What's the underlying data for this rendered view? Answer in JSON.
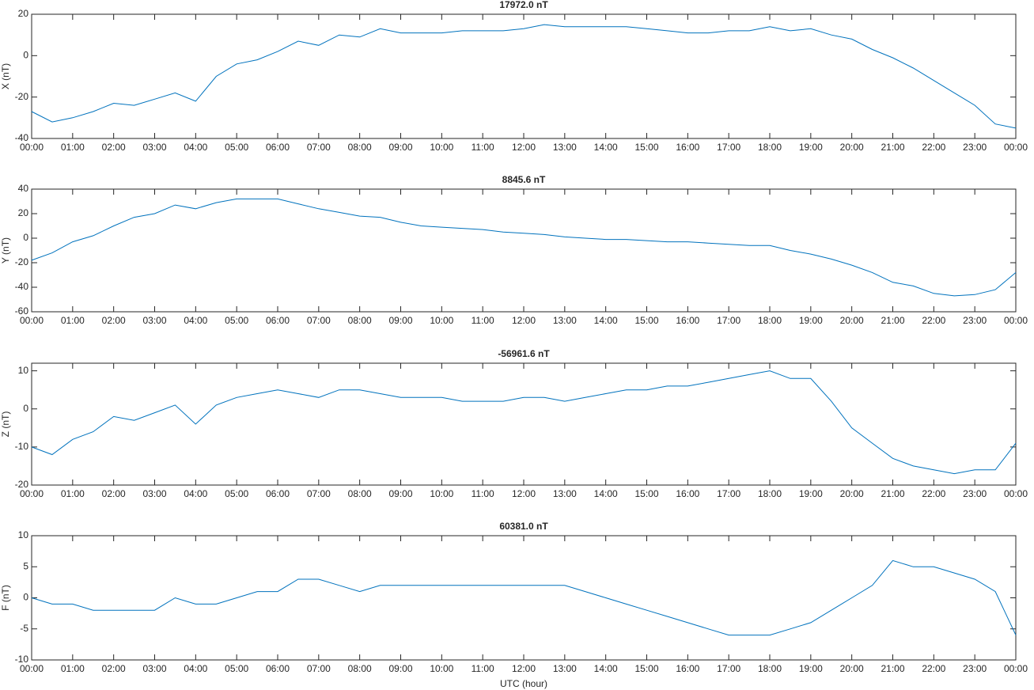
{
  "chart_data": [
    {
      "type": "line",
      "title": "17972.0 nT",
      "ylabel": "X (nT)",
      "x": [
        0,
        0.5,
        1,
        1.5,
        2,
        2.5,
        3,
        3.5,
        4,
        4.5,
        5,
        5.5,
        6,
        6.5,
        7,
        7.5,
        8,
        8.5,
        9,
        9.5,
        10,
        10.5,
        11,
        11.5,
        12,
        12.5,
        13,
        13.5,
        14,
        14.5,
        15,
        15.5,
        16,
        16.5,
        17,
        17.5,
        18,
        18.5,
        19,
        19.5,
        20,
        20.5,
        21,
        21.5,
        22,
        22.5,
        23,
        23.5,
        24
      ],
      "series": [
        {
          "name": "X",
          "color": "#0072bd",
          "values": [
            -27,
            -32,
            -30,
            -27,
            -23,
            -24,
            -21,
            -18,
            -22,
            -10,
            -4,
            -2,
            2,
            7,
            5,
            10,
            9,
            13,
            11,
            11,
            11,
            12,
            12,
            12,
            13,
            15,
            14,
            14,
            14,
            14,
            13,
            12,
            11,
            11,
            12,
            12,
            14,
            12,
            13,
            10,
            8,
            3,
            -1,
            -6,
            -12,
            -18,
            -24,
            -33,
            -35
          ]
        }
      ],
      "xlim": [
        0,
        24
      ],
      "ylim": [
        -40,
        20
      ],
      "yticks": [
        -40,
        -20,
        0,
        20
      ],
      "xticks": [
        {
          "value": 0,
          "label": "00:00"
        },
        {
          "value": 1,
          "label": "01:00"
        },
        {
          "value": 2,
          "label": "02:00"
        },
        {
          "value": 3,
          "label": "03:00"
        },
        {
          "value": 4,
          "label": "04:00"
        },
        {
          "value": 5,
          "label": "05:00"
        },
        {
          "value": 6,
          "label": "06:00"
        },
        {
          "value": 7,
          "label": "07:00"
        },
        {
          "value": 8,
          "label": "08:00"
        },
        {
          "value": 9,
          "label": "09:00"
        },
        {
          "value": 10,
          "label": "10:00"
        },
        {
          "value": 11,
          "label": "11:00"
        },
        {
          "value": 12,
          "label": "12:00"
        },
        {
          "value": 13,
          "label": "13:00"
        },
        {
          "value": 14,
          "label": "14:00"
        },
        {
          "value": 15,
          "label": "15:00"
        },
        {
          "value": 16,
          "label": "16:00"
        },
        {
          "value": 17,
          "label": "17:00"
        },
        {
          "value": 18,
          "label": "18:00"
        },
        {
          "value": 19,
          "label": "19:00"
        },
        {
          "value": 20,
          "label": "20:00"
        },
        {
          "value": 21,
          "label": "21:00"
        },
        {
          "value": 22,
          "label": "22:00"
        },
        {
          "value": 23,
          "label": "23:00"
        },
        {
          "value": 24,
          "label": "00:00"
        }
      ]
    },
    {
      "type": "line",
      "title": "8845.6 nT",
      "ylabel": "Y (nT)",
      "x": [
        0,
        0.5,
        1,
        1.5,
        2,
        2.5,
        3,
        3.5,
        4,
        4.5,
        5,
        5.5,
        6,
        6.5,
        7,
        7.5,
        8,
        8.5,
        9,
        9.5,
        10,
        10.5,
        11,
        11.5,
        12,
        12.5,
        13,
        13.5,
        14,
        14.5,
        15,
        15.5,
        16,
        16.5,
        17,
        17.5,
        18,
        18.5,
        19,
        19.5,
        20,
        20.5,
        21,
        21.5,
        22,
        22.5,
        23,
        23.5,
        24
      ],
      "series": [
        {
          "name": "Y",
          "color": "#0072bd",
          "values": [
            -18,
            -12,
            -3,
            2,
            10,
            17,
            20,
            27,
            24,
            29,
            32,
            32,
            32,
            28,
            24,
            21,
            18,
            17,
            13,
            10,
            9,
            8,
            7,
            5,
            4,
            3,
            1,
            0,
            -1,
            -1,
            -2,
            -3,
            -3,
            -4,
            -5,
            -6,
            -6,
            -10,
            -13,
            -17,
            -22,
            -28,
            -36,
            -39,
            -45,
            -47,
            -46,
            -42,
            -28
          ]
        }
      ],
      "xlim": [
        0,
        24
      ],
      "ylim": [
        -60,
        40
      ],
      "yticks": [
        -60,
        -40,
        -20,
        0,
        20,
        40
      ],
      "xticks": [
        {
          "value": 0,
          "label": "00:00"
        },
        {
          "value": 1,
          "label": "01:00"
        },
        {
          "value": 2,
          "label": "02:00"
        },
        {
          "value": 3,
          "label": "03:00"
        },
        {
          "value": 4,
          "label": "04:00"
        },
        {
          "value": 5,
          "label": "05:00"
        },
        {
          "value": 6,
          "label": "06:00"
        },
        {
          "value": 7,
          "label": "07:00"
        },
        {
          "value": 8,
          "label": "08:00"
        },
        {
          "value": 9,
          "label": "09:00"
        },
        {
          "value": 10,
          "label": "10:00"
        },
        {
          "value": 11,
          "label": "11:00"
        },
        {
          "value": 12,
          "label": "12:00"
        },
        {
          "value": 13,
          "label": "13:00"
        },
        {
          "value": 14,
          "label": "14:00"
        },
        {
          "value": 15,
          "label": "15:00"
        },
        {
          "value": 16,
          "label": "16:00"
        },
        {
          "value": 17,
          "label": "17:00"
        },
        {
          "value": 18,
          "label": "18:00"
        },
        {
          "value": 19,
          "label": "19:00"
        },
        {
          "value": 20,
          "label": "20:00"
        },
        {
          "value": 21,
          "label": "21:00"
        },
        {
          "value": 22,
          "label": "22:00"
        },
        {
          "value": 23,
          "label": "23:00"
        },
        {
          "value": 24,
          "label": "00:00"
        }
      ]
    },
    {
      "type": "line",
      "title": "-56961.6 nT",
      "ylabel": "Z (nT)",
      "x": [
        0,
        0.5,
        1,
        1.5,
        2,
        2.5,
        3,
        3.5,
        4,
        4.5,
        5,
        5.5,
        6,
        6.5,
        7,
        7.5,
        8,
        8.5,
        9,
        9.5,
        10,
        10.5,
        11,
        11.5,
        12,
        12.5,
        13,
        13.5,
        14,
        14.5,
        15,
        15.5,
        16,
        16.5,
        17,
        17.5,
        18,
        18.5,
        19,
        19.5,
        20,
        20.5,
        21,
        21.5,
        22,
        22.5,
        23,
        23.5,
        24
      ],
      "series": [
        {
          "name": "Z",
          "color": "#0072bd",
          "values": [
            -10,
            -12,
            -8,
            -6,
            -2,
            -3,
            -1,
            1,
            -4,
            1,
            3,
            4,
            5,
            4,
            3,
            5,
            5,
            4,
            3,
            3,
            3,
            2,
            2,
            2,
            3,
            3,
            2,
            3,
            4,
            5,
            5,
            6,
            6,
            7,
            8,
            9,
            10,
            8,
            8,
            2,
            -5,
            -9,
            -13,
            -15,
            -16,
            -17,
            -16,
            -16,
            -9
          ]
        }
      ],
      "xlim": [
        0,
        24
      ],
      "ylim": [
        -20,
        12
      ],
      "yticks": [
        -20,
        -10,
        0,
        10
      ],
      "xticks": [
        {
          "value": 0,
          "label": "00:00"
        },
        {
          "value": 1,
          "label": "01:00"
        },
        {
          "value": 2,
          "label": "02:00"
        },
        {
          "value": 3,
          "label": "03:00"
        },
        {
          "value": 4,
          "label": "04:00"
        },
        {
          "value": 5,
          "label": "05:00"
        },
        {
          "value": 6,
          "label": "06:00"
        },
        {
          "value": 7,
          "label": "07:00"
        },
        {
          "value": 8,
          "label": "08:00"
        },
        {
          "value": 9,
          "label": "09:00"
        },
        {
          "value": 10,
          "label": "10:00"
        },
        {
          "value": 11,
          "label": "11:00"
        },
        {
          "value": 12,
          "label": "12:00"
        },
        {
          "value": 13,
          "label": "13:00"
        },
        {
          "value": 14,
          "label": "14:00"
        },
        {
          "value": 15,
          "label": "15:00"
        },
        {
          "value": 16,
          "label": "16:00"
        },
        {
          "value": 17,
          "label": "17:00"
        },
        {
          "value": 18,
          "label": "18:00"
        },
        {
          "value": 19,
          "label": "19:00"
        },
        {
          "value": 20,
          "label": "20:00"
        },
        {
          "value": 21,
          "label": "21:00"
        },
        {
          "value": 22,
          "label": "22:00"
        },
        {
          "value": 23,
          "label": "23:00"
        },
        {
          "value": 24,
          "label": "00:00"
        }
      ]
    },
    {
      "type": "line",
      "title": "60381.0 nT",
      "ylabel": "F (nT)",
      "xlabel": "UTC (hour)",
      "x": [
        0,
        0.5,
        1,
        1.5,
        2,
        2.5,
        3,
        3.5,
        4,
        4.5,
        5,
        5.5,
        6,
        6.5,
        7,
        7.5,
        8,
        8.5,
        9,
        9.5,
        10,
        10.5,
        11,
        11.5,
        12,
        12.5,
        13,
        13.5,
        14,
        14.5,
        15,
        15.5,
        16,
        16.5,
        17,
        17.5,
        18,
        18.5,
        19,
        19.5,
        20,
        20.5,
        21,
        21.5,
        22,
        22.5,
        23,
        23.5,
        24
      ],
      "series": [
        {
          "name": "F",
          "color": "#0072bd",
          "values": [
            0,
            -1,
            -1,
            -2,
            -2,
            -2,
            -2,
            0,
            -1,
            -1,
            0,
            1,
            1,
            3,
            3,
            2,
            1,
            2,
            2,
            2,
            2,
            2,
            2,
            2,
            2,
            2,
            2,
            1,
            0,
            -1,
            -2,
            -3,
            -4,
            -5,
            -6,
            -6,
            -6,
            -5,
            -4,
            -2,
            0,
            2,
            6,
            5,
            5,
            4,
            3,
            1,
            -6
          ]
        }
      ],
      "xlim": [
        0,
        24
      ],
      "ylim": [
        -10,
        10
      ],
      "yticks": [
        -10,
        -5,
        0,
        5,
        10
      ],
      "xticks": [
        {
          "value": 0,
          "label": "00:00"
        },
        {
          "value": 1,
          "label": "01:00"
        },
        {
          "value": 2,
          "label": "02:00"
        },
        {
          "value": 3,
          "label": "03:00"
        },
        {
          "value": 4,
          "label": "04:00"
        },
        {
          "value": 5,
          "label": "05:00"
        },
        {
          "value": 6,
          "label": "06:00"
        },
        {
          "value": 7,
          "label": "07:00"
        },
        {
          "value": 8,
          "label": "08:00"
        },
        {
          "value": 9,
          "label": "09:00"
        },
        {
          "value": 10,
          "label": "10:00"
        },
        {
          "value": 11,
          "label": "11:00"
        },
        {
          "value": 12,
          "label": "12:00"
        },
        {
          "value": 13,
          "label": "13:00"
        },
        {
          "value": 14,
          "label": "14:00"
        },
        {
          "value": 15,
          "label": "15:00"
        },
        {
          "value": 16,
          "label": "16:00"
        },
        {
          "value": 17,
          "label": "17:00"
        },
        {
          "value": 18,
          "label": "18:00"
        },
        {
          "value": 19,
          "label": "19:00"
        },
        {
          "value": 20,
          "label": "20:00"
        },
        {
          "value": 21,
          "label": "21:00"
        },
        {
          "value": 22,
          "label": "22:00"
        },
        {
          "value": 23,
          "label": "23:00"
        },
        {
          "value": 24,
          "label": "00:00"
        }
      ]
    }
  ]
}
